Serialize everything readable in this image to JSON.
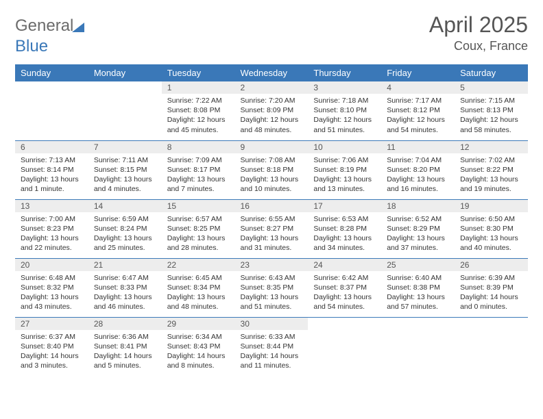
{
  "logo": {
    "part1": "General",
    "part2": "Blue"
  },
  "title": "April 2025",
  "location": "Coux, France",
  "colors": {
    "header_bg": "#3a78b8",
    "header_text": "#ffffff",
    "daynum_bg": "#ededed",
    "cell_border": "#3a78b8",
    "body_bg": "#ffffff",
    "text": "#333333",
    "logo_gray": "#6b6b6b"
  },
  "weekdays": [
    "Sunday",
    "Monday",
    "Tuesday",
    "Wednesday",
    "Thursday",
    "Friday",
    "Saturday"
  ],
  "weeks": [
    [
      null,
      null,
      {
        "n": "1",
        "sr": "7:22 AM",
        "ss": "8:08 PM",
        "dl": "12 hours and 45 minutes."
      },
      {
        "n": "2",
        "sr": "7:20 AM",
        "ss": "8:09 PM",
        "dl": "12 hours and 48 minutes."
      },
      {
        "n": "3",
        "sr": "7:18 AM",
        "ss": "8:10 PM",
        "dl": "12 hours and 51 minutes."
      },
      {
        "n": "4",
        "sr": "7:17 AM",
        "ss": "8:12 PM",
        "dl": "12 hours and 54 minutes."
      },
      {
        "n": "5",
        "sr": "7:15 AM",
        "ss": "8:13 PM",
        "dl": "12 hours and 58 minutes."
      }
    ],
    [
      {
        "n": "6",
        "sr": "7:13 AM",
        "ss": "8:14 PM",
        "dl": "13 hours and 1 minute."
      },
      {
        "n": "7",
        "sr": "7:11 AM",
        "ss": "8:15 PM",
        "dl": "13 hours and 4 minutes."
      },
      {
        "n": "8",
        "sr": "7:09 AM",
        "ss": "8:17 PM",
        "dl": "13 hours and 7 minutes."
      },
      {
        "n": "9",
        "sr": "7:08 AM",
        "ss": "8:18 PM",
        "dl": "13 hours and 10 minutes."
      },
      {
        "n": "10",
        "sr": "7:06 AM",
        "ss": "8:19 PM",
        "dl": "13 hours and 13 minutes."
      },
      {
        "n": "11",
        "sr": "7:04 AM",
        "ss": "8:20 PM",
        "dl": "13 hours and 16 minutes."
      },
      {
        "n": "12",
        "sr": "7:02 AM",
        "ss": "8:22 PM",
        "dl": "13 hours and 19 minutes."
      }
    ],
    [
      {
        "n": "13",
        "sr": "7:00 AM",
        "ss": "8:23 PM",
        "dl": "13 hours and 22 minutes."
      },
      {
        "n": "14",
        "sr": "6:59 AM",
        "ss": "8:24 PM",
        "dl": "13 hours and 25 minutes."
      },
      {
        "n": "15",
        "sr": "6:57 AM",
        "ss": "8:25 PM",
        "dl": "13 hours and 28 minutes."
      },
      {
        "n": "16",
        "sr": "6:55 AM",
        "ss": "8:27 PM",
        "dl": "13 hours and 31 minutes."
      },
      {
        "n": "17",
        "sr": "6:53 AM",
        "ss": "8:28 PM",
        "dl": "13 hours and 34 minutes."
      },
      {
        "n": "18",
        "sr": "6:52 AM",
        "ss": "8:29 PM",
        "dl": "13 hours and 37 minutes."
      },
      {
        "n": "19",
        "sr": "6:50 AM",
        "ss": "8:30 PM",
        "dl": "13 hours and 40 minutes."
      }
    ],
    [
      {
        "n": "20",
        "sr": "6:48 AM",
        "ss": "8:32 PM",
        "dl": "13 hours and 43 minutes."
      },
      {
        "n": "21",
        "sr": "6:47 AM",
        "ss": "8:33 PM",
        "dl": "13 hours and 46 minutes."
      },
      {
        "n": "22",
        "sr": "6:45 AM",
        "ss": "8:34 PM",
        "dl": "13 hours and 48 minutes."
      },
      {
        "n": "23",
        "sr": "6:43 AM",
        "ss": "8:35 PM",
        "dl": "13 hours and 51 minutes."
      },
      {
        "n": "24",
        "sr": "6:42 AM",
        "ss": "8:37 PM",
        "dl": "13 hours and 54 minutes."
      },
      {
        "n": "25",
        "sr": "6:40 AM",
        "ss": "8:38 PM",
        "dl": "13 hours and 57 minutes."
      },
      {
        "n": "26",
        "sr": "6:39 AM",
        "ss": "8:39 PM",
        "dl": "14 hours and 0 minutes."
      }
    ],
    [
      {
        "n": "27",
        "sr": "6:37 AM",
        "ss": "8:40 PM",
        "dl": "14 hours and 3 minutes."
      },
      {
        "n": "28",
        "sr": "6:36 AM",
        "ss": "8:41 PM",
        "dl": "14 hours and 5 minutes."
      },
      {
        "n": "29",
        "sr": "6:34 AM",
        "ss": "8:43 PM",
        "dl": "14 hours and 8 minutes."
      },
      {
        "n": "30",
        "sr": "6:33 AM",
        "ss": "8:44 PM",
        "dl": "14 hours and 11 minutes."
      },
      null,
      null,
      null
    ]
  ],
  "labels": {
    "sunrise": "Sunrise: ",
    "sunset": "Sunset: ",
    "daylight": "Daylight: "
  }
}
